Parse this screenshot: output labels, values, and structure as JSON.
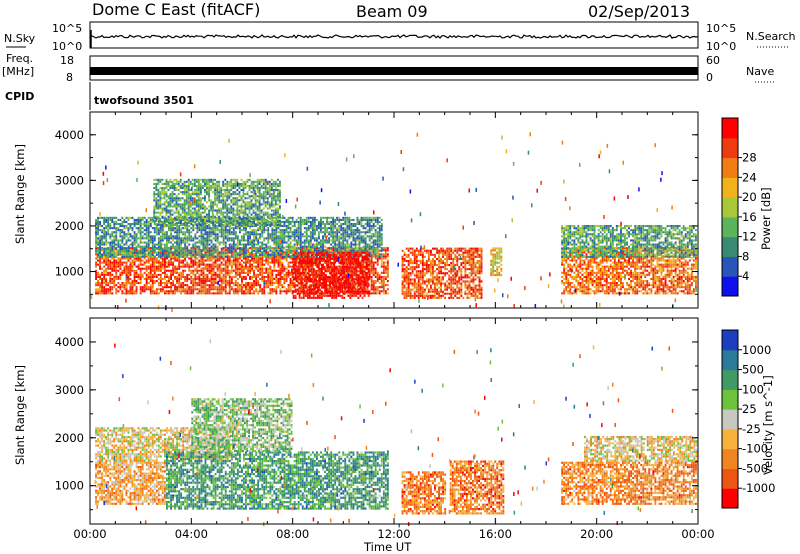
{
  "header": {
    "station": "Dome C East (fitACF)",
    "beam": "Beam 09",
    "date": "02/Sep/2013"
  },
  "top_panels": {
    "nsky_label": "N.Sky",
    "nsky_ticks": [
      "10^5",
      "10^0"
    ],
    "nsearch_label": "N.Search",
    "nsearch_ticks": [
      "10^5",
      "10^0"
    ],
    "freq_label": "Freq.",
    "freq_unit": "[MHz]",
    "freq_ticks": [
      "18",
      "8"
    ],
    "nave_label": "Nave",
    "nave_ticks": [
      "60",
      "0"
    ],
    "cpid_label": "CPID",
    "cpid_value": "twofsound 3501"
  },
  "chart_data": [
    {
      "type": "heatmap",
      "name": "power",
      "ylabel": "Slant Range [km]",
      "xlabel": "Time UT",
      "x_ticks": [
        "00:00",
        "04:00",
        "08:00",
        "12:00",
        "16:00",
        "20:00",
        "00:00"
      ],
      "y_ticks": [
        "1000",
        "2000",
        "3000",
        "4000"
      ],
      "ylim": [
        200,
        4500
      ],
      "xlim_hours": [
        0,
        24
      ],
      "colorbar": {
        "label": "Power [dB]",
        "ticks": [
          "4",
          "8",
          "12",
          "16",
          "20",
          "24",
          "28"
        ],
        "colors": [
          "#1010ee",
          "#2a55b8",
          "#3a8a72",
          "#5cb35a",
          "#a8c83a",
          "#f2b21c",
          "#f07c14",
          "#ee3b10",
          "#ff0000"
        ]
      },
      "blobs": [
        {
          "t0": 0.2,
          "t1": 11.8,
          "r0": 500,
          "r1": 1500,
          "level": 0.82
        },
        {
          "t0": 0.2,
          "t1": 11.5,
          "r0": 1300,
          "r1": 2200,
          "level": 0.3
        },
        {
          "t0": 2.5,
          "t1": 7.5,
          "r0": 2000,
          "r1": 3000,
          "level": 0.35
        },
        {
          "t0": 8.0,
          "t1": 11.0,
          "r0": 400,
          "r1": 1400,
          "level": 0.97
        },
        {
          "t0": 12.3,
          "t1": 15.5,
          "r0": 400,
          "r1": 1500,
          "level": 0.8
        },
        {
          "t0": 15.8,
          "t1": 16.2,
          "r0": 900,
          "r1": 1500,
          "level": 0.6
        },
        {
          "t0": 18.6,
          "t1": 23.9,
          "r0": 500,
          "r1": 1500,
          "level": 0.75
        },
        {
          "t0": 18.6,
          "t1": 23.9,
          "r0": 1300,
          "r1": 2000,
          "level": 0.35
        }
      ]
    },
    {
      "type": "heatmap",
      "name": "velocity",
      "ylabel": "Slant Range [km]",
      "xlabel": "Time UT",
      "x_ticks": [
        "00:00",
        "04:00",
        "08:00",
        "12:00",
        "16:00",
        "20:00",
        "00:00"
      ],
      "y_ticks": [
        "1000",
        "2000",
        "3000",
        "4000"
      ],
      "ylim": [
        200,
        4500
      ],
      "xlim_hours": [
        0,
        24
      ],
      "colorbar": {
        "label": "Velocity [m s^-1]",
        "ticks": [
          "1000",
          "500",
          "100",
          "25",
          "-25",
          "-100",
          "-500",
          "-1000"
        ],
        "colors": [
          "#1c3ec0",
          "#2a7a9a",
          "#3f9a66",
          "#6cc23a",
          "#c8c8c0",
          "#f7b23e",
          "#f0841e",
          "#ee5512",
          "#ff0000"
        ]
      },
      "blobs": [
        {
          "t0": 0.2,
          "t1": 3.0,
          "r0": 600,
          "r1": 1500,
          "level": 0.35
        },
        {
          "t0": 0.2,
          "t1": 5.5,
          "r0": 1500,
          "r1": 2200,
          "level": 0.45
        },
        {
          "t0": 3.0,
          "t1": 11.8,
          "r0": 500,
          "r1": 1700,
          "level": 0.72
        },
        {
          "t0": 4.0,
          "t1": 8.0,
          "r0": 1700,
          "r1": 2800,
          "level": 0.6
        },
        {
          "t0": 12.3,
          "t1": 14.0,
          "r0": 400,
          "r1": 1300,
          "level": 0.25
        },
        {
          "t0": 14.2,
          "t1": 16.3,
          "r0": 400,
          "r1": 1500,
          "level": 0.25
        },
        {
          "t0": 18.6,
          "t1": 23.9,
          "r0": 600,
          "r1": 1500,
          "level": 0.28
        },
        {
          "t0": 19.5,
          "t1": 23.9,
          "r0": 1500,
          "r1": 2000,
          "level": 0.45
        }
      ]
    }
  ]
}
